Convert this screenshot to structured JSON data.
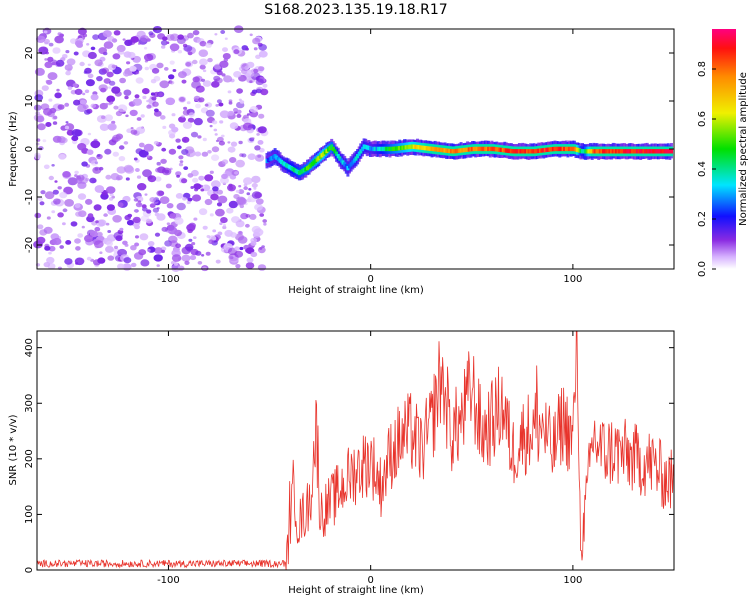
{
  "title": "S168.2023.135.19.18.R17",
  "chart_data": [
    {
      "type": "heatmap",
      "xlabel": "Height of straight line (km)",
      "ylabel": "Frequency (Hz)",
      "xlim": [
        -165,
        150
      ],
      "ylim": [
        -25,
        25
      ],
      "xticks": [
        -100,
        0,
        100
      ],
      "yticks": [
        -20,
        -10,
        0,
        10,
        20
      ],
      "colorbar": {
        "label": "Normalized spectral amplitude",
        "range": [
          0,
          0.96
        ],
        "ticks": [
          0.0,
          0.2,
          0.4,
          0.6,
          0.8
        ]
      },
      "noise_region_x": [
        -165,
        -52
      ],
      "signal_track": {
        "x": [
          -52,
          -48,
          -44,
          -40,
          -36,
          -32,
          -28,
          -24,
          -20,
          -16,
          -12,
          -8,
          -4,
          0,
          10,
          20,
          30,
          40,
          50,
          60,
          70,
          80,
          90,
          100,
          104,
          110,
          120,
          130,
          140,
          148
        ],
        "freq": [
          -2.5,
          -1.5,
          -3.0,
          -4.0,
          -5.0,
          -4.0,
          -2.5,
          -1.0,
          0.5,
          -2.0,
          -4.0,
          -2.0,
          0.5,
          0.0,
          0.0,
          0.5,
          0.0,
          -0.5,
          0.0,
          0.0,
          -0.5,
          -0.5,
          0.0,
          0.0,
          -0.5,
          -0.5,
          -0.5,
          -0.5,
          -0.5,
          -0.5
        ],
        "amplitude": [
          0.25,
          0.3,
          0.35,
          0.4,
          0.45,
          0.5,
          0.55,
          0.6,
          0.5,
          0.35,
          0.3,
          0.35,
          0.35,
          0.3,
          0.5,
          0.65,
          0.75,
          0.8,
          0.82,
          0.85,
          0.88,
          0.9,
          0.9,
          0.85,
          0.35,
          0.85,
          0.9,
          0.92,
          0.95,
          0.95
        ]
      }
    },
    {
      "type": "line",
      "xlabel": "Height of straight line (km)",
      "ylabel": "SNR (10 * v/v)",
      "xlim": [
        -165,
        150
      ],
      "ylim": [
        0,
        430
      ],
      "xticks": [
        -100,
        0,
        100
      ],
      "yticks": [
        0,
        100,
        200,
        300,
        400
      ],
      "color": "#e8342c",
      "x": [
        -165,
        -150,
        -130,
        -110,
        -100,
        -80,
        -60,
        -50,
        -42,
        -40,
        -38,
        -36,
        -30,
        -27,
        -25,
        -20,
        -10,
        0,
        5,
        10,
        15,
        20,
        25,
        30,
        35,
        40,
        45,
        50,
        55,
        60,
        65,
        70,
        75,
        80,
        85,
        90,
        95,
        100,
        102,
        104,
        110,
        115,
        120,
        130,
        140,
        145,
        150
      ],
      "y": [
        12,
        10,
        11,
        12,
        10,
        11,
        12,
        10,
        12,
        60,
        160,
        80,
        120,
        260,
        100,
        120,
        170,
        200,
        150,
        210,
        235,
        250,
        215,
        260,
        355,
        245,
        270,
        330,
        245,
        265,
        300,
        210,
        240,
        255,
        260,
        210,
        270,
        230,
        430,
        35,
        240,
        210,
        215,
        200,
        190,
        165,
        160
      ],
      "baseline_noise": [
        5,
        18
      ],
      "spikes": [
        [
          -40,
          160
        ],
        [
          -26,
          260
        ],
        [
          36,
          355
        ],
        [
          82,
          368
        ],
        [
          102,
          430
        ],
        [
          104,
          35
        ]
      ]
    }
  ]
}
